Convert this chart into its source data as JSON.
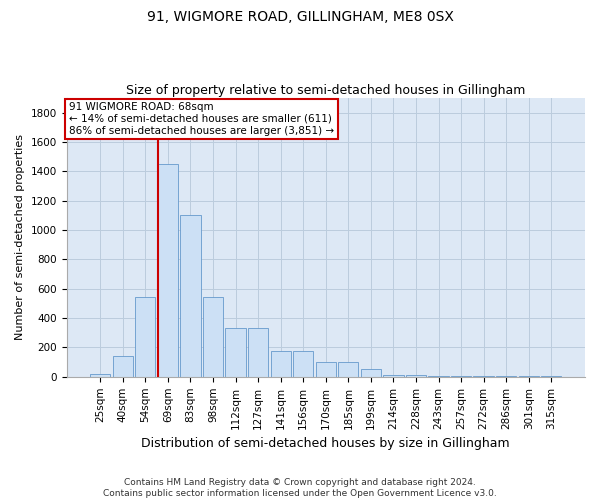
{
  "title": "91, WIGMORE ROAD, GILLINGHAM, ME8 0SX",
  "subtitle": "Size of property relative to semi-detached houses in Gillingham",
  "xlabel": "Distribution of semi-detached houses by size in Gillingham",
  "ylabel": "Number of semi-detached properties",
  "footer_line1": "Contains HM Land Registry data © Crown copyright and database right 2024.",
  "footer_line2": "Contains public sector information licensed under the Open Government Licence v3.0.",
  "bar_labels": [
    "25sqm",
    "40sqm",
    "54sqm",
    "69sqm",
    "83sqm",
    "98sqm",
    "112sqm",
    "127sqm",
    "141sqm",
    "156sqm",
    "170sqm",
    "185sqm",
    "199sqm",
    "214sqm",
    "228sqm",
    "243sqm",
    "257sqm",
    "272sqm",
    "286sqm",
    "301sqm",
    "315sqm"
  ],
  "bar_values": [
    22,
    140,
    545,
    1450,
    1100,
    545,
    330,
    330,
    175,
    175,
    100,
    100,
    50,
    15,
    15,
    8,
    5,
    5,
    5,
    3,
    3
  ],
  "bar_color": "#cce0f5",
  "bar_edgecolor": "#6699cc",
  "grid_color": "#bbccdd",
  "annotation_line1": "91 WIGMORE ROAD: 68sqm",
  "annotation_line2": "← 14% of semi-detached houses are smaller (611)",
  "annotation_line3": "86% of semi-detached houses are larger (3,851) →",
  "annotation_box_color": "#ffffff",
  "annotation_box_edgecolor": "#cc0000",
  "vline_color": "#cc0000",
  "vline_bar_index": 3,
  "ylim": [
    0,
    1900
  ],
  "yticks": [
    0,
    200,
    400,
    600,
    800,
    1000,
    1200,
    1400,
    1600,
    1800
  ],
  "background_color": "#ffffff",
  "axes_bg_color": "#dde8f5",
  "title_fontsize": 10,
  "subtitle_fontsize": 9,
  "ylabel_fontsize": 8,
  "xlabel_fontsize": 9,
  "tick_fontsize": 7.5,
  "annotation_fontsize": 7.5,
  "footer_fontsize": 6.5
}
